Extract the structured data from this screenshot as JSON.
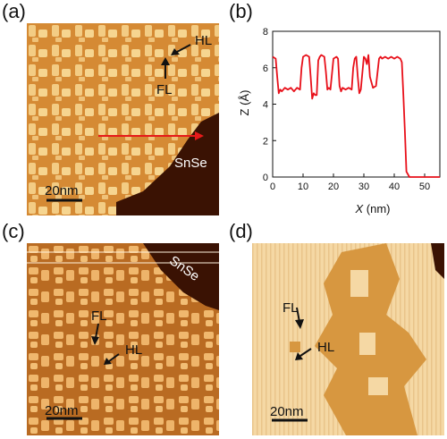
{
  "panels": {
    "a": {
      "label": "(a)",
      "annotations": {
        "hl": "HL",
        "fl": "FL",
        "snse": "SnSe"
      },
      "scale": "20nm"
    },
    "b": {
      "label": "(b)"
    },
    "c": {
      "label": "(c)",
      "annotations": {
        "fl": "FL",
        "hl": "HL",
        "snse": "SnSe"
      },
      "scale": "20nm"
    },
    "d": {
      "label": "(d)",
      "annotations": {
        "fl": "FL",
        "hl": "HL"
      },
      "scale": "20nm"
    }
  },
  "chart_data": {
    "type": "line",
    "xlabel_var": "X",
    "xlabel_unit": " (nm)",
    "ylabel": "Z (Å)",
    "xlim": [
      0,
      55
    ],
    "ylim": [
      0,
      8
    ],
    "xticks": [
      "0",
      "10",
      "20",
      "30",
      "40",
      "50"
    ],
    "yticks": [
      "0",
      "2",
      "4",
      "6",
      "8"
    ],
    "color": "#e8101a",
    "series": [
      {
        "x": [
          0,
          1,
          1.5,
          2,
          2.5,
          3,
          4,
          5,
          6,
          7,
          8,
          9,
          9.5,
          10,
          11,
          12,
          12.5,
          13,
          13.5,
          14,
          14.5,
          15,
          15.5,
          16,
          17,
          17.5,
          18,
          18.5,
          19,
          20,
          21,
          21.5,
          22,
          22.5,
          23,
          24,
          25,
          26,
          26.5,
          27,
          27.5,
          28,
          28.5,
          29,
          30,
          30.5,
          31,
          31.5,
          32,
          33,
          34,
          35,
          35.5,
          36,
          37,
          38,
          39,
          40,
          41,
          42,
          42.5,
          43,
          43.5,
          44,
          45,
          46,
          48,
          50,
          52,
          55
        ],
        "y": [
          6.6,
          6.5,
          5.5,
          4.6,
          4.8,
          4.7,
          4.9,
          4.8,
          4.9,
          4.7,
          4.9,
          4.8,
          6.0,
          6.6,
          6.7,
          6.6,
          5.5,
          4.3,
          4.6,
          4.5,
          4.5,
          6.4,
          6.6,
          6.7,
          6.6,
          5.8,
          4.8,
          4.9,
          4.8,
          6.5,
          6.6,
          6.5,
          5.0,
          4.7,
          4.9,
          4.8,
          4.9,
          4.8,
          6.0,
          6.5,
          6.6,
          5.5,
          4.6,
          4.8,
          6.6,
          6.5,
          6.2,
          6.7,
          5.5,
          4.9,
          5.0,
          6.5,
          6.6,
          6.5,
          6.6,
          6.5,
          6.6,
          6.5,
          6.6,
          6.5,
          6.3,
          4.5,
          2.5,
          0.3,
          0,
          0,
          0,
          0,
          0,
          0
        ]
      }
    ]
  }
}
